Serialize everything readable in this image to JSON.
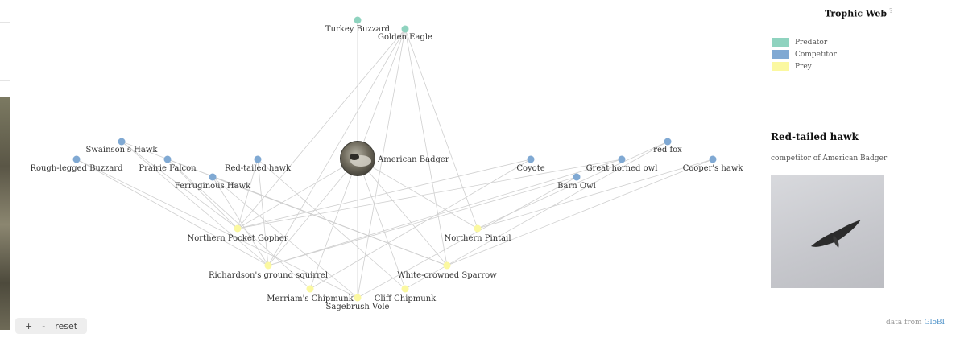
{
  "legend": {
    "title": "Trophic Web",
    "help": "?",
    "items": [
      {
        "label": "Predator",
        "color": "#8fd3bf"
      },
      {
        "label": "Competitor",
        "color": "#80a9d3"
      },
      {
        "label": "Prey",
        "color": "#fbf8a0"
      }
    ]
  },
  "panel": {
    "title": "Red-tailed hawk",
    "subtitle": "competitor of American Badger",
    "photo_icon": "hawk-in-sky-photo"
  },
  "attribution": {
    "prefix": "data from",
    "link": "GloBI"
  },
  "zoom": {
    "plus": "+",
    "minus": "-",
    "reset": "reset"
  },
  "focus": {
    "label": "American Badger",
    "icon": "badger-photo"
  },
  "nodes": [
    {
      "id": "turkey-buzzard",
      "label": "Turkey Buzzard",
      "role": "predator"
    },
    {
      "id": "golden-eagle",
      "label": "Golden Eagle",
      "role": "predator"
    },
    {
      "id": "swainsons-hawk",
      "label": "Swainson's Hawk",
      "role": "competitor"
    },
    {
      "id": "rough-legged-buzzard",
      "label": "Rough-legged Buzzard",
      "role": "competitor"
    },
    {
      "id": "prairie-falcon",
      "label": "Prairie Falcon",
      "role": "competitor"
    },
    {
      "id": "red-tailed-hawk",
      "label": "Red-tailed hawk",
      "role": "competitor"
    },
    {
      "id": "ferruginous-hawk",
      "label": "Ferruginous Hawk",
      "role": "competitor"
    },
    {
      "id": "coyote",
      "label": "Coyote",
      "role": "competitor"
    },
    {
      "id": "great-horned-owl",
      "label": "Great horned owl",
      "role": "competitor"
    },
    {
      "id": "red-fox",
      "label": "red fox",
      "role": "competitor"
    },
    {
      "id": "coopers-hawk",
      "label": "Cooper's hawk",
      "role": "competitor"
    },
    {
      "id": "barn-owl",
      "label": "Barn Owl",
      "role": "competitor"
    },
    {
      "id": "northern-pocket-gopher",
      "label": "Northern Pocket Gopher",
      "role": "prey"
    },
    {
      "id": "northern-pintail",
      "label": "Northern Pintail",
      "role": "prey"
    },
    {
      "id": "richardsons-ground-squirrel",
      "label": "Richardson's ground squirrel",
      "role": "prey"
    },
    {
      "id": "white-crowned-sparrow",
      "label": "White-crowned Sparrow",
      "role": "prey"
    },
    {
      "id": "merriams-chipmunk",
      "label": "Merriam's Chipmunk",
      "role": "prey"
    },
    {
      "id": "cliff-chipmunk",
      "label": "Cliff Chipmunk",
      "role": "prey"
    },
    {
      "id": "sagebrush-vole",
      "label": "Sagebrush Vole",
      "role": "prey"
    }
  ],
  "links": [
    [
      "turkey-buzzard",
      "american-badger"
    ],
    [
      "golden-eagle",
      "american-badger"
    ],
    [
      "golden-eagle",
      "northern-pocket-gopher"
    ],
    [
      "golden-eagle",
      "richardsons-ground-squirrel"
    ],
    [
      "golden-eagle",
      "sagebrush-vole"
    ],
    [
      "golden-eagle",
      "white-crowned-sparrow"
    ],
    [
      "golden-eagle",
      "northern-pintail"
    ],
    [
      "swainsons-hawk",
      "northern-pocket-gopher"
    ],
    [
      "swainsons-hawk",
      "richardsons-ground-squirrel"
    ],
    [
      "swainsons-hawk",
      "white-crowned-sparrow"
    ],
    [
      "rough-legged-buzzard",
      "richardsons-ground-squirrel"
    ],
    [
      "rough-legged-buzzard",
      "sagebrush-vole"
    ],
    [
      "prairie-falcon",
      "northern-pocket-gopher"
    ],
    [
      "prairie-falcon",
      "merriams-chipmunk"
    ],
    [
      "prairie-falcon",
      "white-crowned-sparrow"
    ],
    [
      "red-tailed-hawk",
      "northern-pocket-gopher"
    ],
    [
      "red-tailed-hawk",
      "richardsons-ground-squirrel"
    ],
    [
      "red-tailed-hawk",
      "cliff-chipmunk"
    ],
    [
      "ferruginous-hawk",
      "richardsons-ground-squirrel"
    ],
    [
      "ferruginous-hawk",
      "sagebrush-vole"
    ],
    [
      "ferruginous-hawk",
      "white-crowned-sparrow"
    ],
    [
      "coyote",
      "northern-pocket-gopher"
    ],
    [
      "coyote",
      "merriams-chipmunk"
    ],
    [
      "great-horned-owl",
      "northern-pocket-gopher"
    ],
    [
      "great-horned-owl",
      "richardsons-ground-squirrel"
    ],
    [
      "red-fox",
      "northern-pintail"
    ],
    [
      "red-fox",
      "cliff-chipmunk"
    ],
    [
      "coopers-hawk",
      "white-crowned-sparrow"
    ],
    [
      "coopers-hawk",
      "northern-pintail"
    ],
    [
      "barn-owl",
      "richardsons-ground-squirrel"
    ],
    [
      "barn-owl",
      "sagebrush-vole"
    ],
    [
      "american-badger",
      "northern-pocket-gopher"
    ],
    [
      "american-badger",
      "northern-pintail"
    ],
    [
      "american-badger",
      "richardsons-ground-squirrel"
    ],
    [
      "american-badger",
      "white-crowned-sparrow"
    ],
    [
      "american-badger",
      "merriams-chipmunk"
    ],
    [
      "american-badger",
      "cliff-chipmunk"
    ],
    [
      "american-badger",
      "sagebrush-vole"
    ]
  ]
}
